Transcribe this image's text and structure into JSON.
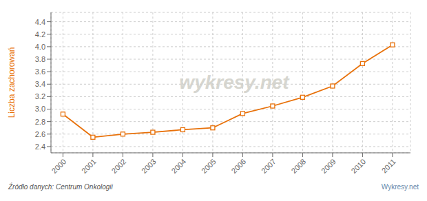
{
  "chart_data": {
    "type": "line",
    "ylabel": "Liczba zachorowań",
    "x": [
      2000,
      2001,
      2002,
      2003,
      2004,
      2005,
      2006,
      2007,
      2008,
      2009,
      2010,
      2011
    ],
    "values": [
      2.92,
      2.55,
      2.6,
      2.63,
      2.67,
      2.7,
      2.93,
      3.05,
      3.19,
      3.37,
      3.73,
      4.03
    ],
    "color": "#e8710a",
    "marker": "square",
    "xlim": [
      1999.6,
      2011.6
    ],
    "xticks": [
      2000,
      2001,
      2002,
      2003,
      2004,
      2005,
      2006,
      2007,
      2008,
      2009,
      2010,
      2011
    ],
    "ylim": [
      2.3,
      4.55
    ],
    "yticks": [
      2.4,
      2.6,
      2.8,
      {
        "value": 3,
        "label": "3.0"
      },
      3.2,
      3.4,
      3.6,
      3.8,
      {
        "value": 4,
        "label": "4.0"
      },
      4.2,
      4.4
    ],
    "grid": true,
    "annotations": [
      "wykresy.net",
      "Źródło danych:  Centrum Onkologii",
      "Wykresy.net"
    ]
  }
}
